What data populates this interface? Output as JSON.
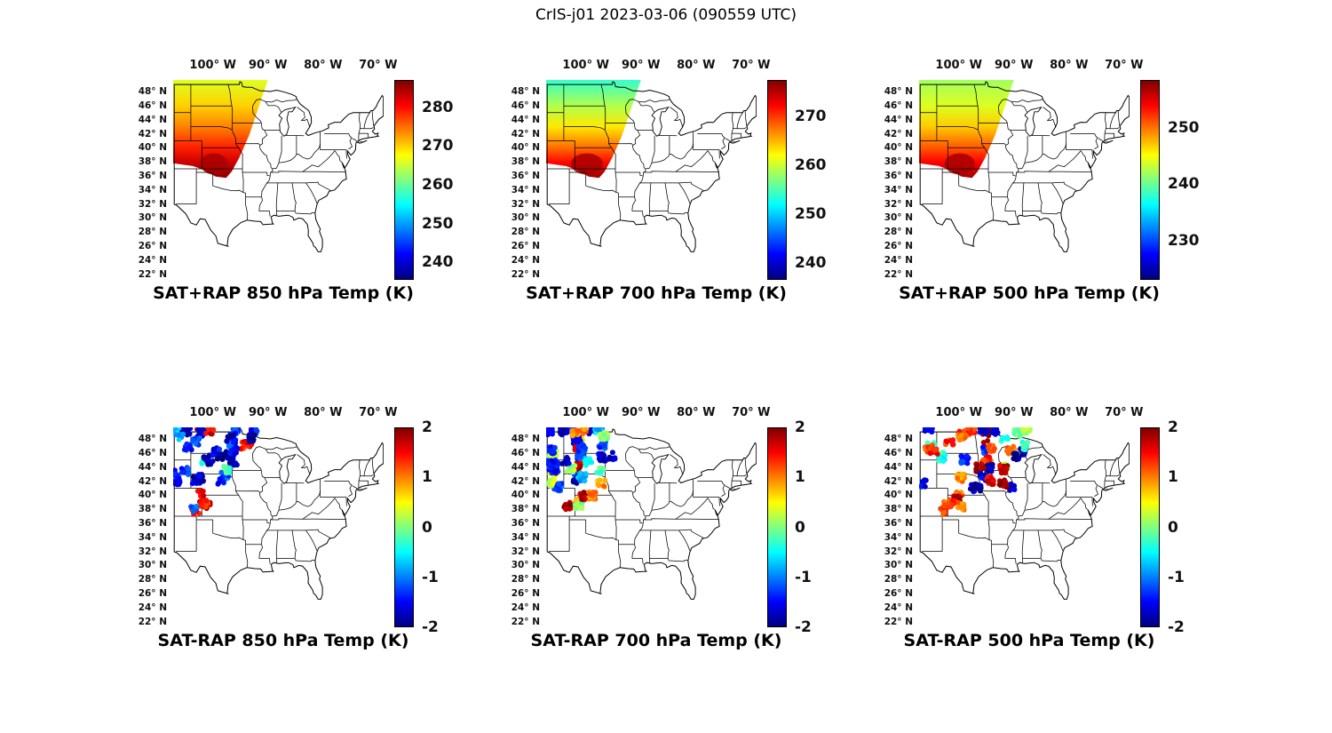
{
  "figure_title": "CrIS-j01 2023-03-06 (090559 UTC)",
  "axes": {
    "lon_range": [
      -107.2,
      -69.0
    ],
    "lat_range": [
      21.2,
      49.65
    ],
    "lon_ticks": [
      {
        "value": -100,
        "label": "100° W"
      },
      {
        "value": -90,
        "label": "90° W"
      },
      {
        "value": -80,
        "label": "80° W"
      },
      {
        "value": -70,
        "label": "70° W"
      }
    ],
    "lat_ticks": [
      {
        "value": 48,
        "label": "48° N"
      },
      {
        "value": 46,
        "label": "46° N"
      },
      {
        "value": 44,
        "label": "44° N"
      },
      {
        "value": 42,
        "label": "42° N"
      },
      {
        "value": 40,
        "label": "40° N"
      },
      {
        "value": 38,
        "label": "38° N"
      },
      {
        "value": 36,
        "label": "36° N"
      },
      {
        "value": 34,
        "label": "34° N"
      },
      {
        "value": 32,
        "label": "32° N"
      },
      {
        "value": 30,
        "label": "30° N"
      },
      {
        "value": 28,
        "label": "28° N"
      },
      {
        "value": 26,
        "label": "26° N"
      },
      {
        "value": 24,
        "label": "24° N"
      },
      {
        "value": 22,
        "label": "22° N"
      }
    ]
  },
  "chart_data": [
    {
      "id": "sat-plus-rap-850",
      "row": 0,
      "col": 0,
      "type": "heatmap",
      "title": "SAT+RAP 850 hPa Temp (K)",
      "colorbar": {
        "units": "K",
        "colormap": "jet",
        "vmin": 235.5,
        "vmax": 287,
        "ticks": [
          280,
          270,
          260,
          250,
          240
        ]
      },
      "swath": {
        "lon_extent": [
          -107.2,
          -90.0
        ],
        "lat_extent": [
          35.7,
          49.65
        ],
        "temp_profile": [
          {
            "lat": 49.6,
            "K": 266
          },
          {
            "lat": 46,
            "K": 270
          },
          {
            "lat": 43,
            "K": 274
          },
          {
            "lat": 40,
            "K": 279
          },
          {
            "lat": 38,
            "K": 283
          },
          {
            "lat": 36,
            "K": 286
          }
        ]
      },
      "description": "CrIS+RAP 850 hPa temperature swath over the northern/central plains: ~285 K (dark red) near 36-38N over OK/KS, cooling to ~266 K (yellow-green) near the Canadian border."
    },
    {
      "id": "sat-plus-rap-700",
      "row": 0,
      "col": 1,
      "type": "heatmap",
      "title": "SAT+RAP 700 hPa Temp (K)",
      "colorbar": {
        "units": "K",
        "colormap": "jet",
        "vmin": 236.5,
        "vmax": 277.5,
        "ticks": [
          270,
          260,
          250,
          240
        ]
      },
      "swath": {
        "lon_extent": [
          -107.2,
          -90.0
        ],
        "lat_extent": [
          35.7,
          49.65
        ],
        "temp_profile": [
          {
            "lat": 49.6,
            "K": 254
          },
          {
            "lat": 46,
            "K": 259
          },
          {
            "lat": 43,
            "K": 263
          },
          {
            "lat": 40,
            "K": 268
          },
          {
            "lat": 38,
            "K": 272
          },
          {
            "lat": 36,
            "K": 276
          }
        ]
      },
      "description": "700 hPa temperatures: ~276 K (dark red) over the southern plains, ~254 K (cyan-green) at the northern edge of the swath."
    },
    {
      "id": "sat-plus-rap-500",
      "row": 0,
      "col": 2,
      "type": "heatmap",
      "title": "SAT+RAP 500 hPa Temp (K)",
      "colorbar": {
        "units": "K",
        "colormap": "jet",
        "vmin": 223,
        "vmax": 258.5,
        "ticks": [
          250,
          240,
          230
        ]
      },
      "swath": {
        "lon_extent": [
          -107.2,
          -90.0
        ],
        "lat_extent": [
          35.7,
          49.65
        ],
        "temp_profile": [
          {
            "lat": 49.6,
            "K": 242
          },
          {
            "lat": 46,
            "K": 244
          },
          {
            "lat": 43,
            "K": 247
          },
          {
            "lat": 40,
            "K": 251
          },
          {
            "lat": 38,
            "K": 254
          },
          {
            "lat": 36,
            "K": 257
          }
        ]
      },
      "description": "500 hPa temperatures: ~257 K (red/dark red) near 36-40N, ~242 K (green) near 49N."
    },
    {
      "id": "sat-minus-rap-850",
      "row": 1,
      "col": 0,
      "type": "scatter",
      "title": "SAT-RAP 850 hPa Temp (K)",
      "colorbar": {
        "units": "K",
        "colormap": "jet",
        "vmin": -2,
        "vmax": 2,
        "ticks": [
          2,
          1,
          0,
          -1,
          -2
        ]
      },
      "points": {
        "extent": {
          "lon": [
            -106.8,
            -91.8
          ],
          "lat": [
            37.4,
            49.5
          ]
        },
        "fractions": {
          "cold": 0.72,
          "neutral": 0.13,
          "warm": 0.15
        },
        "pattern": "Differences mostly -1 to -2 K (dark blue) over MT/ND/SD/MN with scattered +1 to +2 K (red/orange) spots, and a mixed warm/cold cluster near 38-40N, 103-97W."
      }
    },
    {
      "id": "sat-minus-rap-700",
      "row": 1,
      "col": 1,
      "type": "scatter",
      "title": "SAT-RAP 700 hPa Temp (K)",
      "colorbar": {
        "units": "K",
        "colormap": "jet",
        "vmin": -2,
        "vmax": 2,
        "ticks": [
          2,
          1,
          0,
          -1,
          -2
        ]
      },
      "points": {
        "extent": {
          "lon": [
            -106.8,
            -91.8
          ],
          "lat": [
            37.4,
            49.5
          ]
        },
        "fractions": {
          "cold": 0.5,
          "neutral": 0.2,
          "warm": 0.3
        },
        "pattern": "Mix of -2 to -1 K (blue) patches in the north with bands of +1 to +2 K (orange/red) near 40-44N and a red/dark-blue cluster near 38-40N."
      }
    },
    {
      "id": "sat-minus-rap-500",
      "row": 1,
      "col": 2,
      "type": "scatter",
      "title": "SAT-RAP 500 hPa Temp (K)",
      "colorbar": {
        "units": "K",
        "colormap": "jet",
        "vmin": -2,
        "vmax": 2,
        "ticks": [
          2,
          1,
          0,
          -1,
          -2
        ]
      },
      "points": {
        "extent": {
          "lon": [
            -106.8,
            -86.8
          ],
          "lat": [
            37.4,
            49.5
          ]
        },
        "fractions": {
          "cold": 0.33,
          "neutral": 0.17,
          "warm": 0.5
        },
        "pattern": "Large +1 to +2 K (red/orange) areas over SD/NE/MN/IA/WI mixed with -1 to -2 K (dark blue) and cyan patches; coverage extends farther east than at 850/700 hPa."
      }
    }
  ]
}
